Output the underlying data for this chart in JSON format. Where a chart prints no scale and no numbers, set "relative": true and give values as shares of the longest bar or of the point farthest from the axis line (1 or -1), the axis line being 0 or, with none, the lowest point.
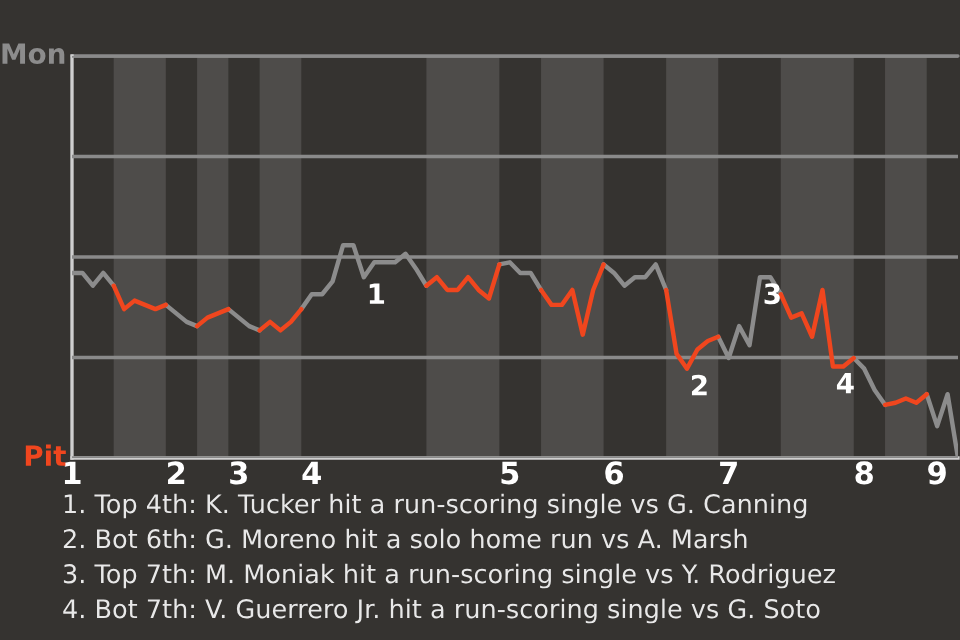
{
  "chart_data": {
    "type": "line",
    "categories": [
      "1",
      null,
      null,
      null,
      null,
      null,
      null,
      null,
      null,
      null,
      "2",
      null,
      null,
      null,
      null,
      null,
      "3",
      null,
      null,
      null,
      null,
      null,
      null,
      "4",
      null,
      null,
      null,
      null,
      null,
      null,
      null,
      null,
      null,
      null,
      null,
      null,
      null,
      null,
      null,
      null,
      null,
      null,
      "5",
      null,
      null,
      null,
      null,
      null,
      null,
      null,
      null,
      null,
      "6",
      null,
      null,
      null,
      null,
      null,
      null,
      null,
      null,
      null,
      null,
      "7",
      null,
      null,
      null,
      null,
      null,
      null,
      null,
      null,
      null,
      null,
      null,
      null,
      "8",
      null,
      null,
      null,
      null,
      null,
      null,
      "9",
      null,
      null
    ],
    "series": [
      {
        "color": "#8c8c8c",
        "values": [
          0.87,
          0.87,
          0.81,
          0.87,
          0.81,
          null,
          null,
          null,
          null,
          0.72,
          0.68,
          0.64,
          0.62,
          null,
          null,
          0.7,
          0.66,
          0.62,
          0.6,
          null,
          null,
          null,
          0.7,
          0.77,
          0.77,
          0.83,
          1,
          1,
          0.85,
          0.92,
          0.92,
          0.92,
          0.96,
          0.89,
          0.81,
          null,
          null,
          null,
          null,
          null,
          null,
          0.91,
          0.92,
          0.87,
          0.87,
          0.79,
          null,
          null,
          null,
          null,
          null,
          0.91,
          0.87,
          0.81,
          0.85,
          0.85,
          0.91,
          0.79,
          null,
          null,
          null,
          null,
          0.57,
          0.47,
          0.62,
          0.53,
          0.85,
          0.85,
          0.77,
          null,
          null,
          null,
          null,
          null,
          null,
          0.47,
          0.42,
          0.32,
          0.25,
          null,
          null,
          null,
          0.3,
          0.15,
          0.3,
          0
        ]
      },
      {
        "color": "#f0461e",
        "values": [
          null,
          null,
          null,
          null,
          0.81,
          0.7,
          0.74,
          0.72,
          0.7,
          0.72,
          null,
          null,
          0.62,
          0.66,
          0.68,
          0.7,
          null,
          null,
          0.6,
          0.64,
          0.6,
          0.64,
          0.7,
          null,
          null,
          null,
          null,
          null,
          null,
          null,
          null,
          null,
          null,
          null,
          0.81,
          0.85,
          0.79,
          0.79,
          0.85,
          0.79,
          0.75,
          0.91,
          null,
          null,
          null,
          0.79,
          0.72,
          0.72,
          0.79,
          0.58,
          0.79,
          0.91,
          null,
          null,
          null,
          null,
          null,
          0.79,
          0.49,
          0.42,
          0.51,
          0.55,
          0.57,
          null,
          null,
          null,
          null,
          null,
          0.77,
          0.66,
          0.68,
          0.57,
          0.79,
          0.43,
          0.43,
          0.47,
          null,
          null,
          0.25,
          0.26,
          0.28,
          0.26,
          0.3,
          null,
          null,
          null
        ]
      }
    ],
    "relative": true,
    "ylim": [
      0,
      1.89
    ],
    "grid": "y",
    "annotations": [
      "Mon",
      "Pit",
      {
        "text": "1",
        "y": 0.85
      },
      {
        "text": "2",
        "y": 0.42
      },
      {
        "text": "3",
        "y": 0.85
      },
      {
        "text": "4",
        "y": 0.43
      },
      "1. Top 4th: K. Tucker hit a run-scoring single vs G. Canning",
      "2. Bot 6th: G. Moreno hit a solo home run vs A. Marsh",
      "3. Top 7th: M. Moniak hit a run-scoring single vs Y. Rodriguez",
      "4. Bot 7th: V. Guerrero Jr. hit a run-scoring single vs G. Soto"
    ]
  }
}
